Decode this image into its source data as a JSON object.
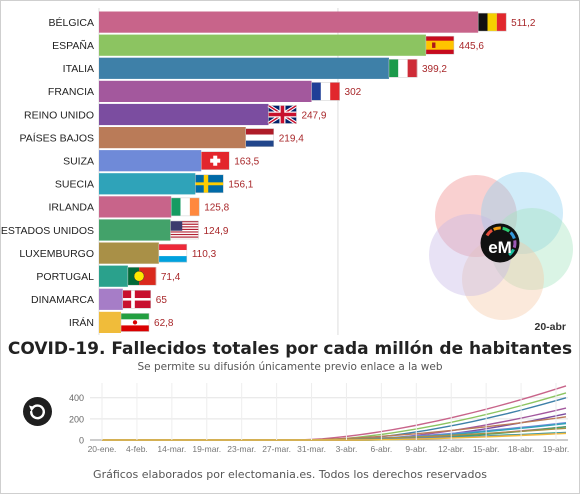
{
  "title": "COVID-19. Fallecidos totales por cada millón de habitantes",
  "subtitle": "Se permite su difusión únicamente previo enlace a la web",
  "footer": "Gráficos elaborados por electomania.es. Todos los derechos reservados",
  "date_label": "20-abr",
  "logo": {
    "text": "eM",
    "petal_colors": [
      "#f08a8a",
      "#8dd0ef",
      "#a2e3bf",
      "#f6c7a4",
      "#c6b6e6"
    ]
  },
  "chart_data": [
    {
      "type": "bar",
      "orientation": "horizontal",
      "categories": [
        "BÉLGICA",
        "ESPAÑA",
        "ITALIA",
        "FRANCIA",
        "REINO UNIDO",
        "PAÍSES BAJOS",
        "SUIZA",
        "SUECIA",
        "IRLANDA",
        "ESTADOS UNIDOS",
        "LUXEMBURGO",
        "PORTUGAL",
        "DINAMARCA",
        "IRÁN"
      ],
      "values": [
        511.2,
        445.6,
        399.2,
        302,
        247.9,
        219.4,
        163.5,
        156.1,
        125.8,
        124.9,
        110.3,
        71.4,
        65,
        62.8
      ],
      "value_labels": [
        "511,2",
        "445,6",
        "399,2",
        "302",
        "247,9",
        "219,4",
        "163,5",
        "156,1",
        "125,8",
        "124,9",
        "110,3",
        "71,4",
        "65",
        "62,8"
      ],
      "colors": [
        "#c8648a",
        "#8cc461",
        "#3e80a8",
        "#a3589d",
        "#7b4da0",
        "#ba7b58",
        "#6f8ad8",
        "#2fa3b9",
        "#c8648a",
        "#43a26a",
        "#a99047",
        "#2aa18c",
        "#a67dc7",
        "#f0bc3a"
      ],
      "flags": [
        "belgium",
        "spain",
        "italy",
        "france",
        "united-kingdom",
        "netherlands",
        "switzerland",
        "sweden",
        "ireland",
        "united-states",
        "luxembourg",
        "portugal",
        "denmark",
        "iran"
      ],
      "xlim": [
        0,
        520
      ],
      "gridlines": [
        0,
        300
      ],
      "date": "20-abr"
    },
    {
      "type": "line",
      "x_ticks": [
        "20-ene.",
        "4-feb.",
        "14-mar.",
        "19-mar.",
        "23-mar.",
        "27-mar.",
        "31-mar.",
        "3-abr.",
        "6-abr.",
        "9-abr.",
        "12-abr.",
        "15-abr.",
        "18-abr.",
        "19-abr."
      ],
      "y_ticks": [
        0,
        200,
        400
      ],
      "ylim": [
        0,
        520
      ],
      "grid": true,
      "legend": "none"
    }
  ]
}
